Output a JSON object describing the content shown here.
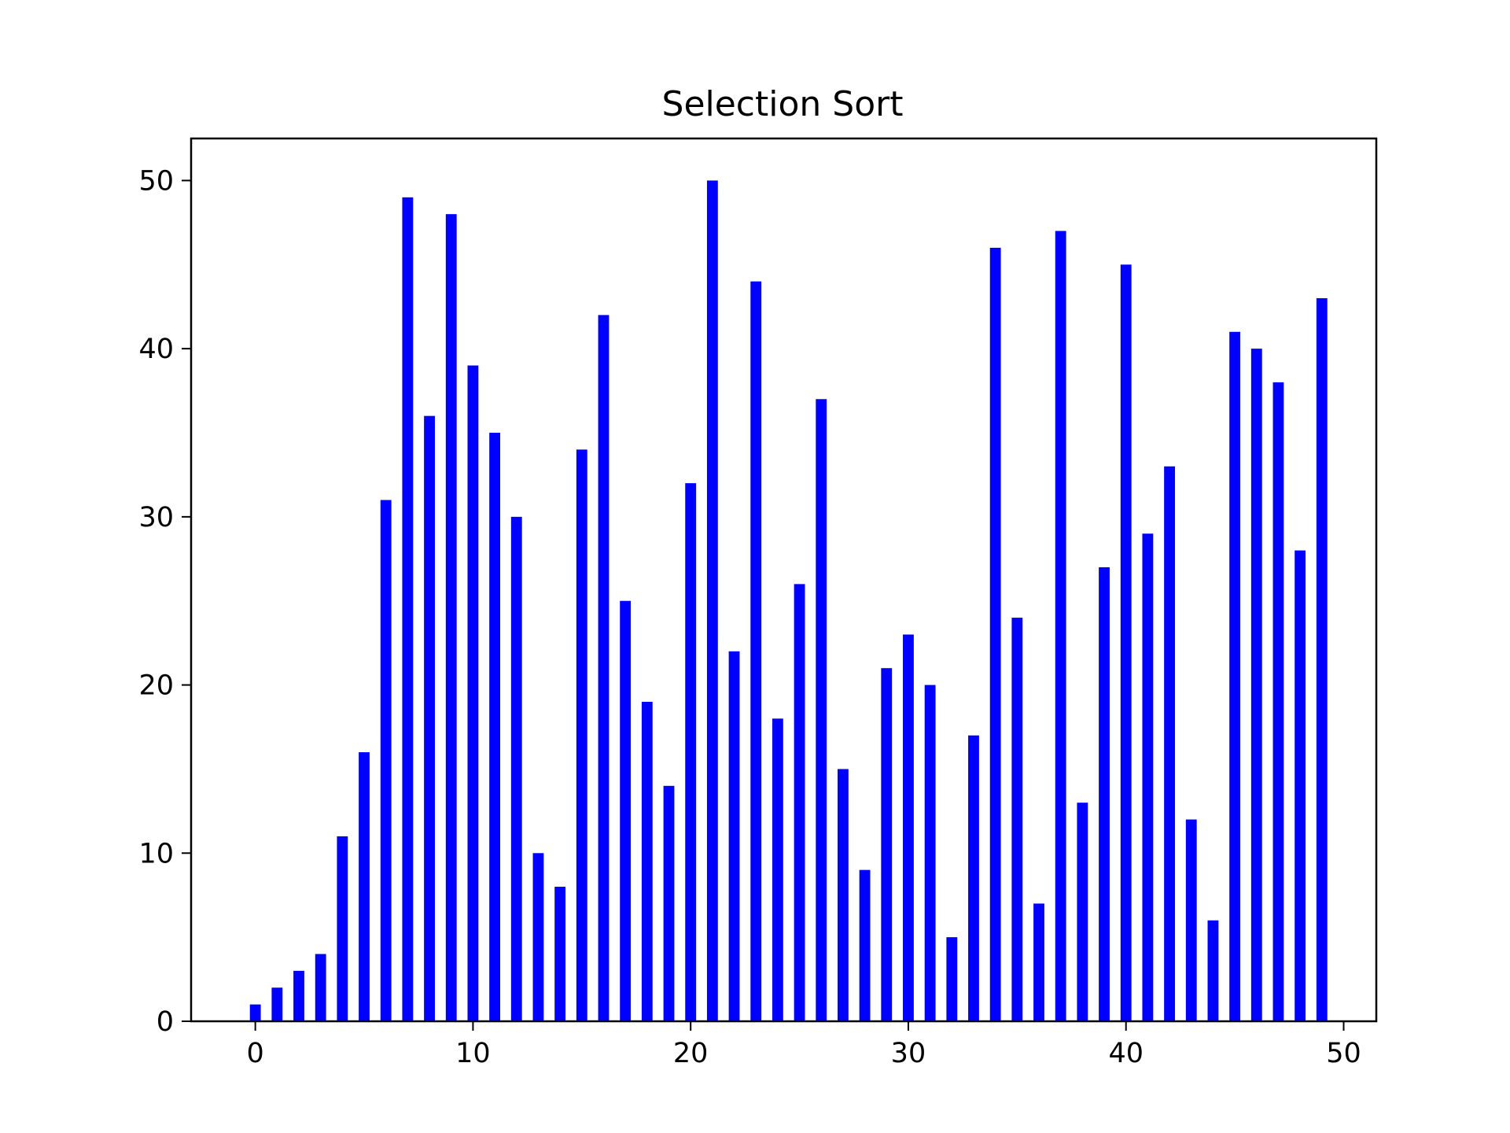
{
  "chart_data": {
    "type": "bar",
    "title": "Selection Sort",
    "xlabel": "",
    "ylabel": "",
    "x": [
      0,
      1,
      2,
      3,
      4,
      5,
      6,
      7,
      8,
      9,
      10,
      11,
      12,
      13,
      14,
      15,
      16,
      17,
      18,
      19,
      20,
      21,
      22,
      23,
      24,
      25,
      26,
      27,
      28,
      29,
      30,
      31,
      32,
      33,
      34,
      35,
      36,
      37,
      38,
      39,
      40,
      41,
      42,
      43,
      44,
      45,
      46,
      47,
      48,
      49
    ],
    "values": [
      1,
      2,
      3,
      4,
      11,
      16,
      31,
      49,
      36,
      48,
      39,
      35,
      30,
      10,
      8,
      34,
      42,
      25,
      19,
      14,
      32,
      50,
      22,
      44,
      18,
      26,
      37,
      15,
      9,
      21,
      23,
      20,
      5,
      17,
      46,
      24,
      7,
      47,
      13,
      27,
      45,
      29,
      33,
      12,
      6,
      41,
      40,
      38,
      28,
      43
    ],
    "xlim": [
      -2.95,
      51.5
    ],
    "ylim": [
      0,
      52.5
    ],
    "xticks": [
      0,
      10,
      20,
      30,
      40,
      50
    ],
    "yticks": [
      0,
      10,
      20,
      30,
      40,
      50
    ],
    "bar_color": "#0000ff",
    "grid": false,
    "legend": false
  }
}
